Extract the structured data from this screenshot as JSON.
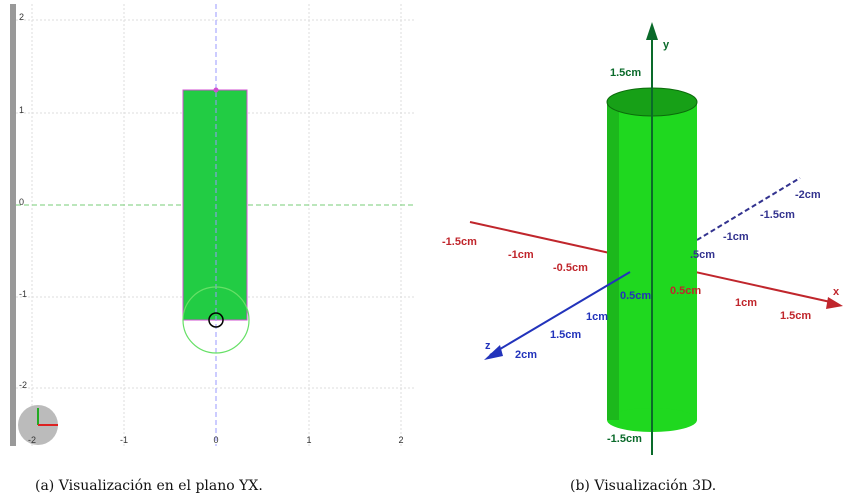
{
  "left": {
    "y_ticks": [
      "2",
      "1",
      "0",
      "-1",
      "-2"
    ],
    "x_ticks": [
      "-2",
      "-1",
      "0",
      "1",
      "2"
    ],
    "caption": "(a) Visualización en el plano YX."
  },
  "right": {
    "axis_y": "y",
    "axis_x": "x",
    "axis_z": "z",
    "y_labels": [
      "1.5cm",
      "-1.5cm"
    ],
    "x_labels": [
      "-1.5cm",
      "-1cm",
      "-0.5cm",
      "0.5cm",
      "1cm",
      "1.5cm"
    ],
    "z_labels": [
      "0.5cm",
      "1cm",
      "1.5cm",
      "2cm"
    ],
    "neg_z_labels": [
      ".5cm",
      "-1cm",
      "-1.5cm",
      "-2cm"
    ],
    "caption": "(b) Visualización 3D."
  }
}
